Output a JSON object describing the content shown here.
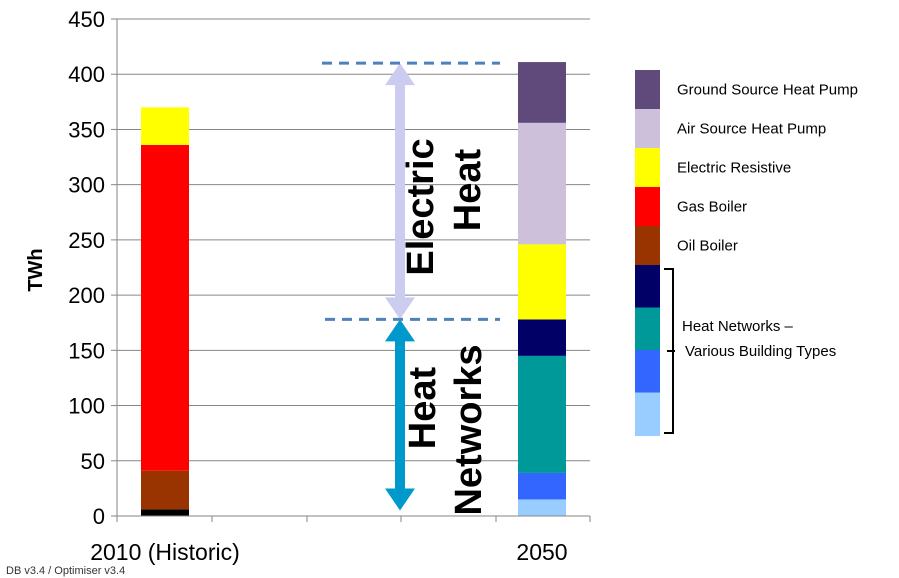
{
  "chart_data": {
    "type": "bar",
    "stacked": true,
    "categories": [
      "2010 (Historic)",
      "2050"
    ],
    "ylabel": "TWh",
    "ylim": [
      0,
      450
    ],
    "yticks": [
      0,
      50,
      100,
      150,
      200,
      250,
      300,
      350,
      400,
      450
    ],
    "series": [
      {
        "color": "#000000",
        "values": [
          6,
          0
        ]
      },
      {
        "name": "Oil Boiler",
        "color": "#993300",
        "values": [
          35,
          0
        ]
      },
      {
        "name": "Gas Boiler",
        "color": "#ff0000",
        "values": [
          295,
          0
        ]
      },
      {
        "name": "Electric Resistive",
        "color": "#ffff00",
        "values": [
          34,
          68
        ]
      },
      {
        "color": "#99ccff",
        "values": [
          0,
          15
        ]
      },
      {
        "color": "#3366ff",
        "values": [
          0,
          24
        ]
      },
      {
        "color": "#009999",
        "values": [
          0,
          106
        ]
      },
      {
        "color": "#000066",
        "values": [
          0,
          33
        ]
      },
      {
        "name": "Air Source Heat Pump",
        "color": "#ccc0da",
        "values": [
          0,
          110
        ]
      },
      {
        "name": "Ground Source Heat Pump",
        "color": "#604a7b",
        "values": [
          0,
          55
        ]
      }
    ],
    "stack_order": [
      [
        0,
        1,
        2,
        3
      ],
      [
        4,
        5,
        6,
        7,
        3,
        8,
        9
      ]
    ],
    "legend": {
      "position": "right",
      "items": [
        {
          "label": "Ground Source Heat Pump",
          "color": "#604a7b"
        },
        {
          "label": "Air Source Heat Pump",
          "color": "#ccc0da"
        },
        {
          "label": "Electric Resistive",
          "color": "#ffff00"
        },
        {
          "label": "Gas Boiler",
          "color": "#ff0000"
        },
        {
          "label": "Oil Boiler",
          "color": "#993300"
        }
      ],
      "group": {
        "label_line1": "Heat Networks –",
        "label_line2": "Various Building Types",
        "colors": [
          "#000066",
          "#009999",
          "#3366ff",
          "#99ccff"
        ]
      }
    },
    "annotations": {
      "electric_heat": {
        "line1": "Electric",
        "line2": "Heat",
        "from": 178,
        "to": 410,
        "color": "#ccccf0"
      },
      "heat_networks": {
        "line1": "Heat",
        "line2": "Networks",
        "from": 5,
        "to": 178,
        "color": "#0099cc"
      },
      "dash_color": "#4f81bd"
    },
    "grid": true
  },
  "footer_text": "DB v3.4 / Optimiser v3.4"
}
